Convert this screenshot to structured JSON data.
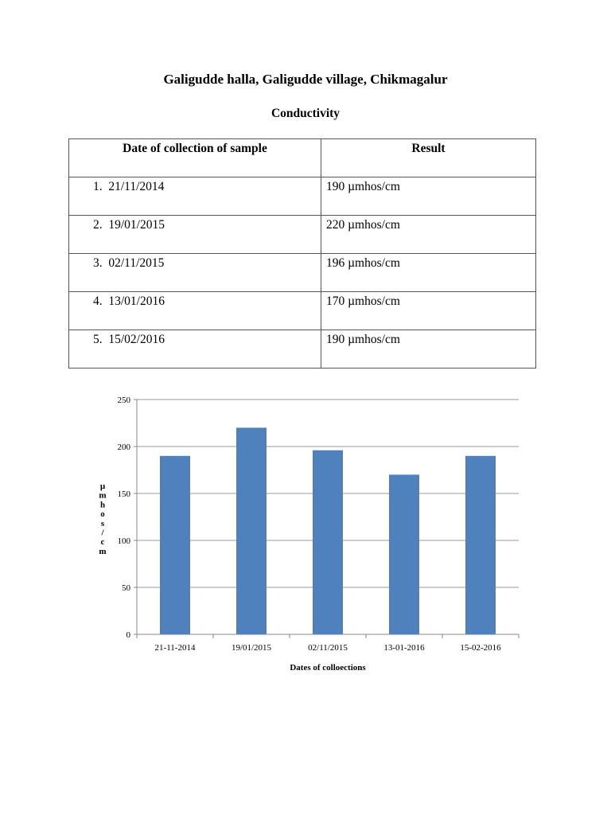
{
  "title": "Galigudde halla, Galigudde village, Chikmagalur",
  "subtitle": "Conductivity",
  "table": {
    "headers": [
      "Date of collection of sample",
      "Result"
    ],
    "rows": [
      {
        "n": "1.",
        "date": "21/11/2014",
        "result": "190 µmhos/cm"
      },
      {
        "n": "2.",
        "date": "19/01/2015",
        "result": "220 µmhos/cm"
      },
      {
        "n": "3.",
        "date": "02/11/2015",
        "result": "196 µmhos/cm"
      },
      {
        "n": "4.",
        "date": "13/01/2016",
        "result": "170 µmhos/cm"
      },
      {
        "n": "5.",
        "date": "15/02/2016",
        "result": "190 µmhos/cm"
      }
    ]
  },
  "chart_data": {
    "type": "bar",
    "title": "",
    "categories": [
      "21-11-2014",
      "19/01/2015",
      "02/11/2015",
      "13-01-2016",
      "15-02-2016"
    ],
    "values": [
      190,
      220,
      196,
      170,
      190
    ],
    "xlabel": "Dates of colloections",
    "ylabel": "µmhos/cm",
    "ylim": [
      0,
      250
    ],
    "yticks": [
      0,
      50,
      100,
      150,
      200,
      250
    ],
    "grid": true,
    "legend": "none",
    "bar_color": "#4f81bd"
  }
}
